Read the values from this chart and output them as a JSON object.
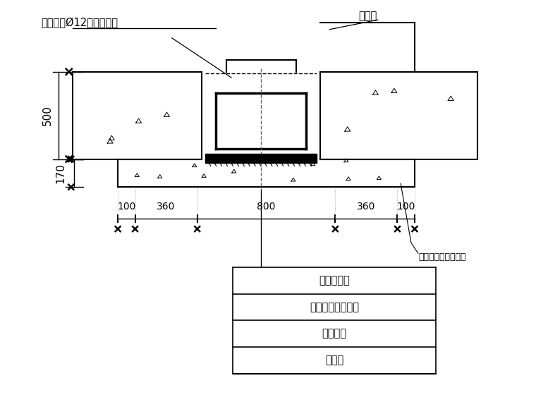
{
  "bg_color": "#ffffff",
  "labels": {
    "top_left": "附加双向Ø12「」型盖筋",
    "top_right": "铅丝网",
    "dim_500": "500",
    "dim_170": "170",
    "dim_100_left": "100",
    "dim_360_left": "360",
    "dim_800": "800",
    "dim_360_right": "360",
    "dim_100_right": "100",
    "note_right": "先浇与底板同标号砼",
    "label1": "混凝土底板",
    "label2": "外贴式橡胶止水带",
    "label3": "防水卷材",
    "label4": "砼垫层"
  }
}
